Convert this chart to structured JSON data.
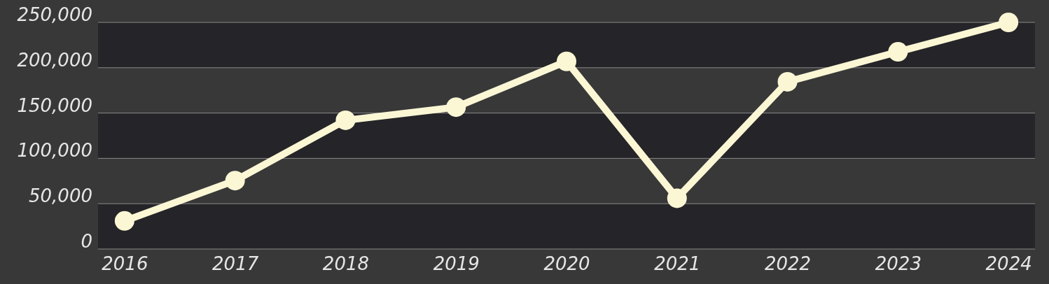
{
  "chart_data": {
    "type": "line",
    "categories": [
      "2016",
      "2017",
      "2018",
      "2019",
      "2020",
      "2021",
      "2022",
      "2023",
      "2024"
    ],
    "series": [
      {
        "color": "#fbf7d5",
        "values": [
          31000,
          75500,
          142000,
          156500,
          207000,
          56000,
          184500,
          217500,
          250000
        ]
      }
    ],
    "ylim": [
      0,
      250000
    ],
    "yticks": [
      {
        "value": 0,
        "label": "0"
      },
      {
        "value": 50000,
        "label": "50,000"
      },
      {
        "value": 100000,
        "label": "100,000"
      },
      {
        "value": 150000,
        "label": "150,000"
      },
      {
        "value": 200000,
        "label": "200,000"
      },
      {
        "value": 250000,
        "label": "250,000"
      }
    ],
    "grid": "y",
    "marker": "circle",
    "line_style": "solid"
  }
}
